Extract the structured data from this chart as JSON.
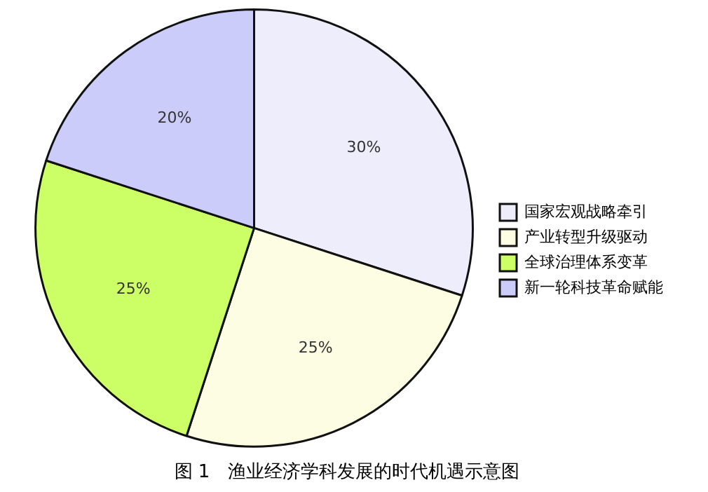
{
  "chart_data": {
    "type": "pie",
    "title": "图 1　渔业经济学科发展的时代机遇示意图",
    "categories": [
      "国家宏观战略牵引",
      "产业转型升级驱动",
      "全球治理体系变革",
      "新一轮科技革命赋能"
    ],
    "values": [
      30,
      25,
      25,
      20
    ],
    "colors": [
      "#ededfb",
      "#fdfde3",
      "#ccff66",
      "#ccccfb"
    ],
    "value_labels": [
      "30%",
      "25%",
      "25%",
      "20%"
    ],
    "legend": "right"
  }
}
